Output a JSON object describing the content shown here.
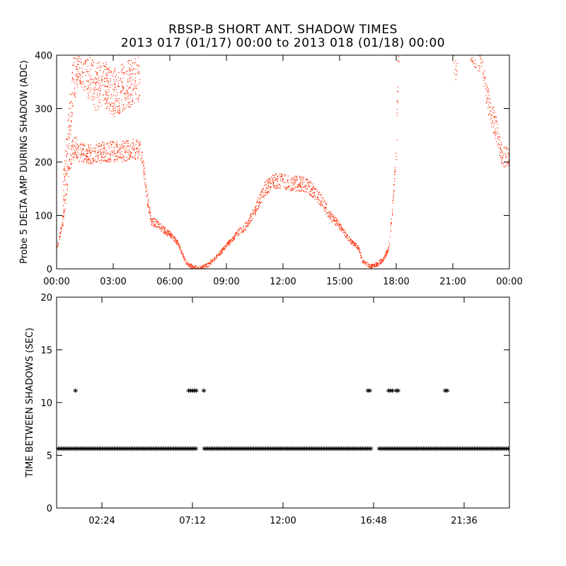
{
  "header": {
    "title": "RBSP-B SHORT ANT. SHADOW TIMES",
    "subtitle": "2013 017 (01/17) 00:00 to 2013 018 (01/18) 00:00"
  },
  "colors": {
    "shadow_points": "#ff2a00",
    "interval_points": "#000000",
    "axes": "#000000"
  },
  "chart_data": [
    {
      "type": "scatter",
      "title": "RBSP-B SHORT ANT. SHADOW TIMES",
      "ylabel": "Probe 5 DELTA AMP DURING SHADOW (ADC)",
      "xlabel": "",
      "xlim": [
        0,
        24
      ],
      "ylim": [
        0,
        400
      ],
      "xtick_values": [
        0,
        3,
        6,
        9,
        12,
        15,
        18,
        21,
        24
      ],
      "xtick_labels": [
        "00:00",
        "03:00",
        "06:00",
        "09:00",
        "12:00",
        "15:00",
        "18:00",
        "21:00",
        "00:00"
      ],
      "ytick_values": [
        0,
        100,
        200,
        300,
        400
      ],
      "ytick_labels": [
        "0",
        "100",
        "200",
        "300",
        "400"
      ],
      "marker": "dot",
      "color": "#ff2a00",
      "grid": false,
      "series": [
        {
          "x": [
            0.0,
            0.2,
            0.4,
            0.6,
            0.8,
            1.0,
            1.2,
            1.5,
            2.0,
            2.5,
            3.0,
            3.5,
            4.0,
            4.4,
            4.6,
            4.8,
            5.0,
            5.3,
            5.6,
            6.0,
            6.4,
            6.8,
            7.0,
            7.2,
            7.6,
            8.0,
            8.5,
            9.0,
            9.5,
            10.0,
            10.5,
            11.0,
            11.5,
            12.0,
            12.5,
            13.0,
            13.5,
            14.0,
            14.5,
            15.0,
            15.5,
            16.0,
            16.2,
            16.6,
            17.0,
            17.3,
            17.6,
            17.8,
            18.0,
            18.1,
            21.0,
            21.2,
            22.0,
            22.5,
            22.8,
            23.3,
            23.6,
            24.0
          ],
          "y": [
            40,
            70,
            110,
            180,
            220,
            230,
            220,
            215,
            215,
            220,
            220,
            220,
            225,
            225,
            190,
            130,
            90,
            85,
            75,
            65,
            50,
            15,
            8,
            4,
            2,
            8,
            25,
            45,
            65,
            80,
            110,
            150,
            165,
            165,
            160,
            160,
            150,
            130,
            100,
            80,
            55,
            40,
            15,
            5,
            10,
            18,
            40,
            120,
            230,
            420,
            420,
            355,
            420,
            400,
            320,
            260,
            210,
            210
          ]
        },
        {
          "x": [
            0.3,
            0.6,
            0.9,
            1.2,
            1.6,
            2.0,
            2.5,
            3.0,
            3.5,
            4.0,
            4.4
          ],
          "y": [
            120,
            250,
            360,
            390,
            370,
            340,
            350,
            330,
            340,
            350,
            360
          ]
        }
      ]
    },
    {
      "type": "scatter",
      "ylabel": "TIME BETWEEN SHADOWS (SEC)",
      "xlabel": "",
      "xlim": [
        0,
        24
      ],
      "ylim": [
        0,
        20
      ],
      "xtick_values": [
        2.4,
        7.2,
        12.0,
        16.8,
        21.6
      ],
      "xtick_labels": [
        "02:24",
        "07:12",
        "12:00",
        "16:48",
        "21:36"
      ],
      "ytick_values": [
        0,
        5,
        10,
        15,
        20
      ],
      "ytick_labels": [
        "0",
        "5",
        "10",
        "15",
        "20"
      ],
      "marker": "asterisk",
      "color": "#000000",
      "grid": false,
      "series": [
        {
          "x": [
            1.0,
            7.0,
            7.1,
            7.2,
            7.3,
            7.4,
            7.8,
            16.5,
            16.6,
            17.6,
            17.7,
            17.8,
            18.0,
            18.1,
            20.6,
            20.7
          ],
          "y": [
            11,
            11,
            11,
            11,
            11,
            11,
            11,
            11,
            11,
            11,
            11,
            11,
            11,
            11,
            11,
            11
          ]
        },
        {
          "x_range": [
            0,
            24
          ],
          "y": 5.5,
          "gap_x": [
            7.45,
            7.75,
            16.7,
            17.05
          ]
        }
      ]
    }
  ]
}
